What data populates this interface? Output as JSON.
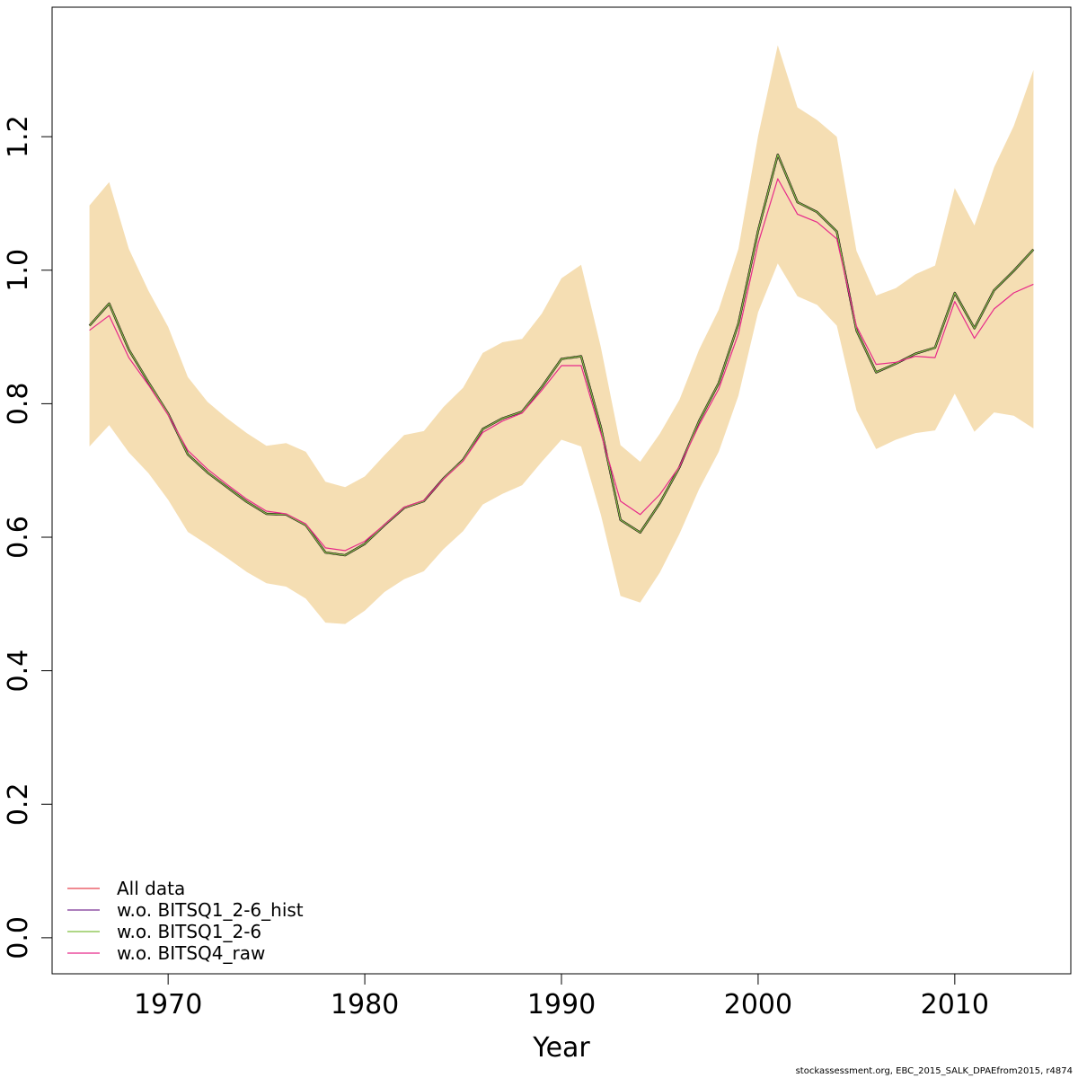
{
  "chart_data": {
    "type": "line",
    "title": "",
    "xlabel": "Year",
    "ylabel": "",
    "xlim": [
      1964.1,
      2015.9
    ],
    "ylim": [
      -0.054,
      1.394
    ],
    "x_ticks": [
      1970,
      1980,
      1990,
      2000,
      2010
    ],
    "y_ticks": [
      0.0,
      0.2,
      0.4,
      0.6,
      0.8,
      1.0,
      1.2
    ],
    "y_tick_labels": [
      "0.0",
      "0.2",
      "0.4",
      "0.6",
      "0.8",
      "1.0",
      "1.2"
    ],
    "x_tick_labels": [
      "1970",
      "1980",
      "1990",
      "2000",
      "2010"
    ],
    "grid": false,
    "legend_position": "bottom-left",
    "band": {
      "color": "#F5DEB3",
      "x": [
        1966,
        1967,
        1968,
        1969,
        1970,
        1971,
        1972,
        1973,
        1974,
        1975,
        1976,
        1977,
        1978,
        1979,
        1980,
        1981,
        1982,
        1983,
        1984,
        1985,
        1986,
        1987,
        1988,
        1989,
        1990,
        1991,
        1992,
        1993,
        1994,
        1995,
        1996,
        1997,
        1998,
        1999,
        2000,
        2001,
        2002,
        2003,
        2004,
        2005,
        2006,
        2007,
        2008,
        2009,
        2010,
        2011,
        2012,
        2013,
        2014
      ],
      "upper": [
        1.097,
        1.132,
        1.032,
        0.969,
        0.915,
        0.84,
        0.803,
        0.778,
        0.756,
        0.737,
        0.741,
        0.728,
        0.683,
        0.675,
        0.691,
        0.723,
        0.753,
        0.759,
        0.795,
        0.824,
        0.876,
        0.892,
        0.897,
        0.935,
        0.988,
        1.008,
        0.885,
        0.738,
        0.713,
        0.755,
        0.806,
        0.881,
        0.941,
        1.032,
        1.201,
        1.337,
        1.244,
        1.225,
        1.2,
        1.029,
        0.962,
        0.973,
        0.994,
        1.007,
        1.123,
        1.067,
        1.154,
        1.216,
        1.3
      ],
      "lower": [
        0.736,
        0.768,
        0.727,
        0.696,
        0.656,
        0.608,
        0.589,
        0.569,
        0.548,
        0.531,
        0.526,
        0.508,
        0.472,
        0.47,
        0.49,
        0.518,
        0.537,
        0.549,
        0.582,
        0.609,
        0.649,
        0.665,
        0.678,
        0.713,
        0.746,
        0.736,
        0.634,
        0.512,
        0.502,
        0.547,
        0.605,
        0.672,
        0.728,
        0.812,
        0.937,
        1.01,
        0.961,
        0.948,
        0.917,
        0.79,
        0.732,
        0.746,
        0.756,
        0.76,
        0.815,
        0.758,
        0.787,
        0.782,
        0.763
      ]
    },
    "x": [
      1966,
      1967,
      1968,
      1969,
      1970,
      1971,
      1972,
      1973,
      1974,
      1975,
      1976,
      1977,
      1978,
      1979,
      1980,
      1981,
      1982,
      1983,
      1984,
      1985,
      1986,
      1987,
      1988,
      1989,
      1990,
      1991,
      1992,
      1993,
      1994,
      1995,
      1996,
      1997,
      1998,
      1999,
      2000,
      2001,
      2002,
      2003,
      2004,
      2005,
      2006,
      2007,
      2008,
      2009,
      2010,
      2011,
      2012,
      2013,
      2014
    ],
    "series": [
      {
        "name": "All data",
        "color": "#E8434F",
        "width": 1.2,
        "values": [
          0.917,
          0.95,
          0.881,
          0.832,
          0.785,
          0.724,
          0.697,
          0.675,
          0.653,
          0.635,
          0.634,
          0.618,
          0.577,
          0.573,
          0.59,
          0.618,
          0.644,
          0.654,
          0.688,
          0.716,
          0.762,
          0.778,
          0.788,
          0.825,
          0.867,
          0.871,
          0.765,
          0.626,
          0.607,
          0.651,
          0.705,
          0.774,
          0.831,
          0.92,
          1.059,
          1.173,
          1.102,
          1.087,
          1.058,
          0.91,
          0.847,
          0.86,
          0.875,
          0.884,
          0.966,
          0.913,
          0.97,
          0.999,
          1.031
        ]
      },
      {
        "name": "w.o. BITSQ1_2-6_hist",
        "color": "#7B3294",
        "width": 1.2,
        "values": [
          0.917,
          0.95,
          0.881,
          0.832,
          0.785,
          0.724,
          0.697,
          0.675,
          0.653,
          0.635,
          0.634,
          0.618,
          0.577,
          0.573,
          0.59,
          0.618,
          0.644,
          0.654,
          0.688,
          0.716,
          0.762,
          0.778,
          0.788,
          0.825,
          0.867,
          0.871,
          0.765,
          0.626,
          0.607,
          0.651,
          0.705,
          0.774,
          0.831,
          0.92,
          1.059,
          1.173,
          1.102,
          1.087,
          1.058,
          0.91,
          0.847,
          0.86,
          0.875,
          0.884,
          0.966,
          0.913,
          0.97,
          0.999,
          1.031
        ]
      },
      {
        "name": "w.o. BITSQ1_2-6",
        "color": "#7FBF3F",
        "width": 1.2,
        "values": [
          0.917,
          0.95,
          0.881,
          0.832,
          0.785,
          0.724,
          0.697,
          0.675,
          0.653,
          0.635,
          0.634,
          0.618,
          0.577,
          0.573,
          0.59,
          0.618,
          0.644,
          0.654,
          0.688,
          0.716,
          0.762,
          0.778,
          0.788,
          0.825,
          0.867,
          0.871,
          0.765,
          0.626,
          0.607,
          0.651,
          0.705,
          0.774,
          0.831,
          0.92,
          1.059,
          1.173,
          1.102,
          1.087,
          1.058,
          0.91,
          0.847,
          0.86,
          0.875,
          0.884,
          0.966,
          0.913,
          0.97,
          0.999,
          1.031
        ]
      },
      {
        "name": "w.o. BITSQ4_raw",
        "color": "#E7298A",
        "width": 1.2,
        "values": [
          0.91,
          0.932,
          0.869,
          0.828,
          0.783,
          0.73,
          0.702,
          0.679,
          0.657,
          0.639,
          0.635,
          0.62,
          0.584,
          0.58,
          0.594,
          0.619,
          0.645,
          0.655,
          0.687,
          0.714,
          0.757,
          0.774,
          0.786,
          0.82,
          0.857,
          0.857,
          0.756,
          0.654,
          0.634,
          0.664,
          0.706,
          0.768,
          0.822,
          0.905,
          1.04,
          1.137,
          1.084,
          1.072,
          1.047,
          0.916,
          0.859,
          0.862,
          0.871,
          0.869,
          0.953,
          0.898,
          0.942,
          0.966,
          0.979
        ]
      }
    ],
    "base_line": {
      "color": "#000000",
      "width": 2.4
    }
  },
  "footer": "stockassessment.org, EBC_2015_SALK_DPAEfrom2015, r4874"
}
